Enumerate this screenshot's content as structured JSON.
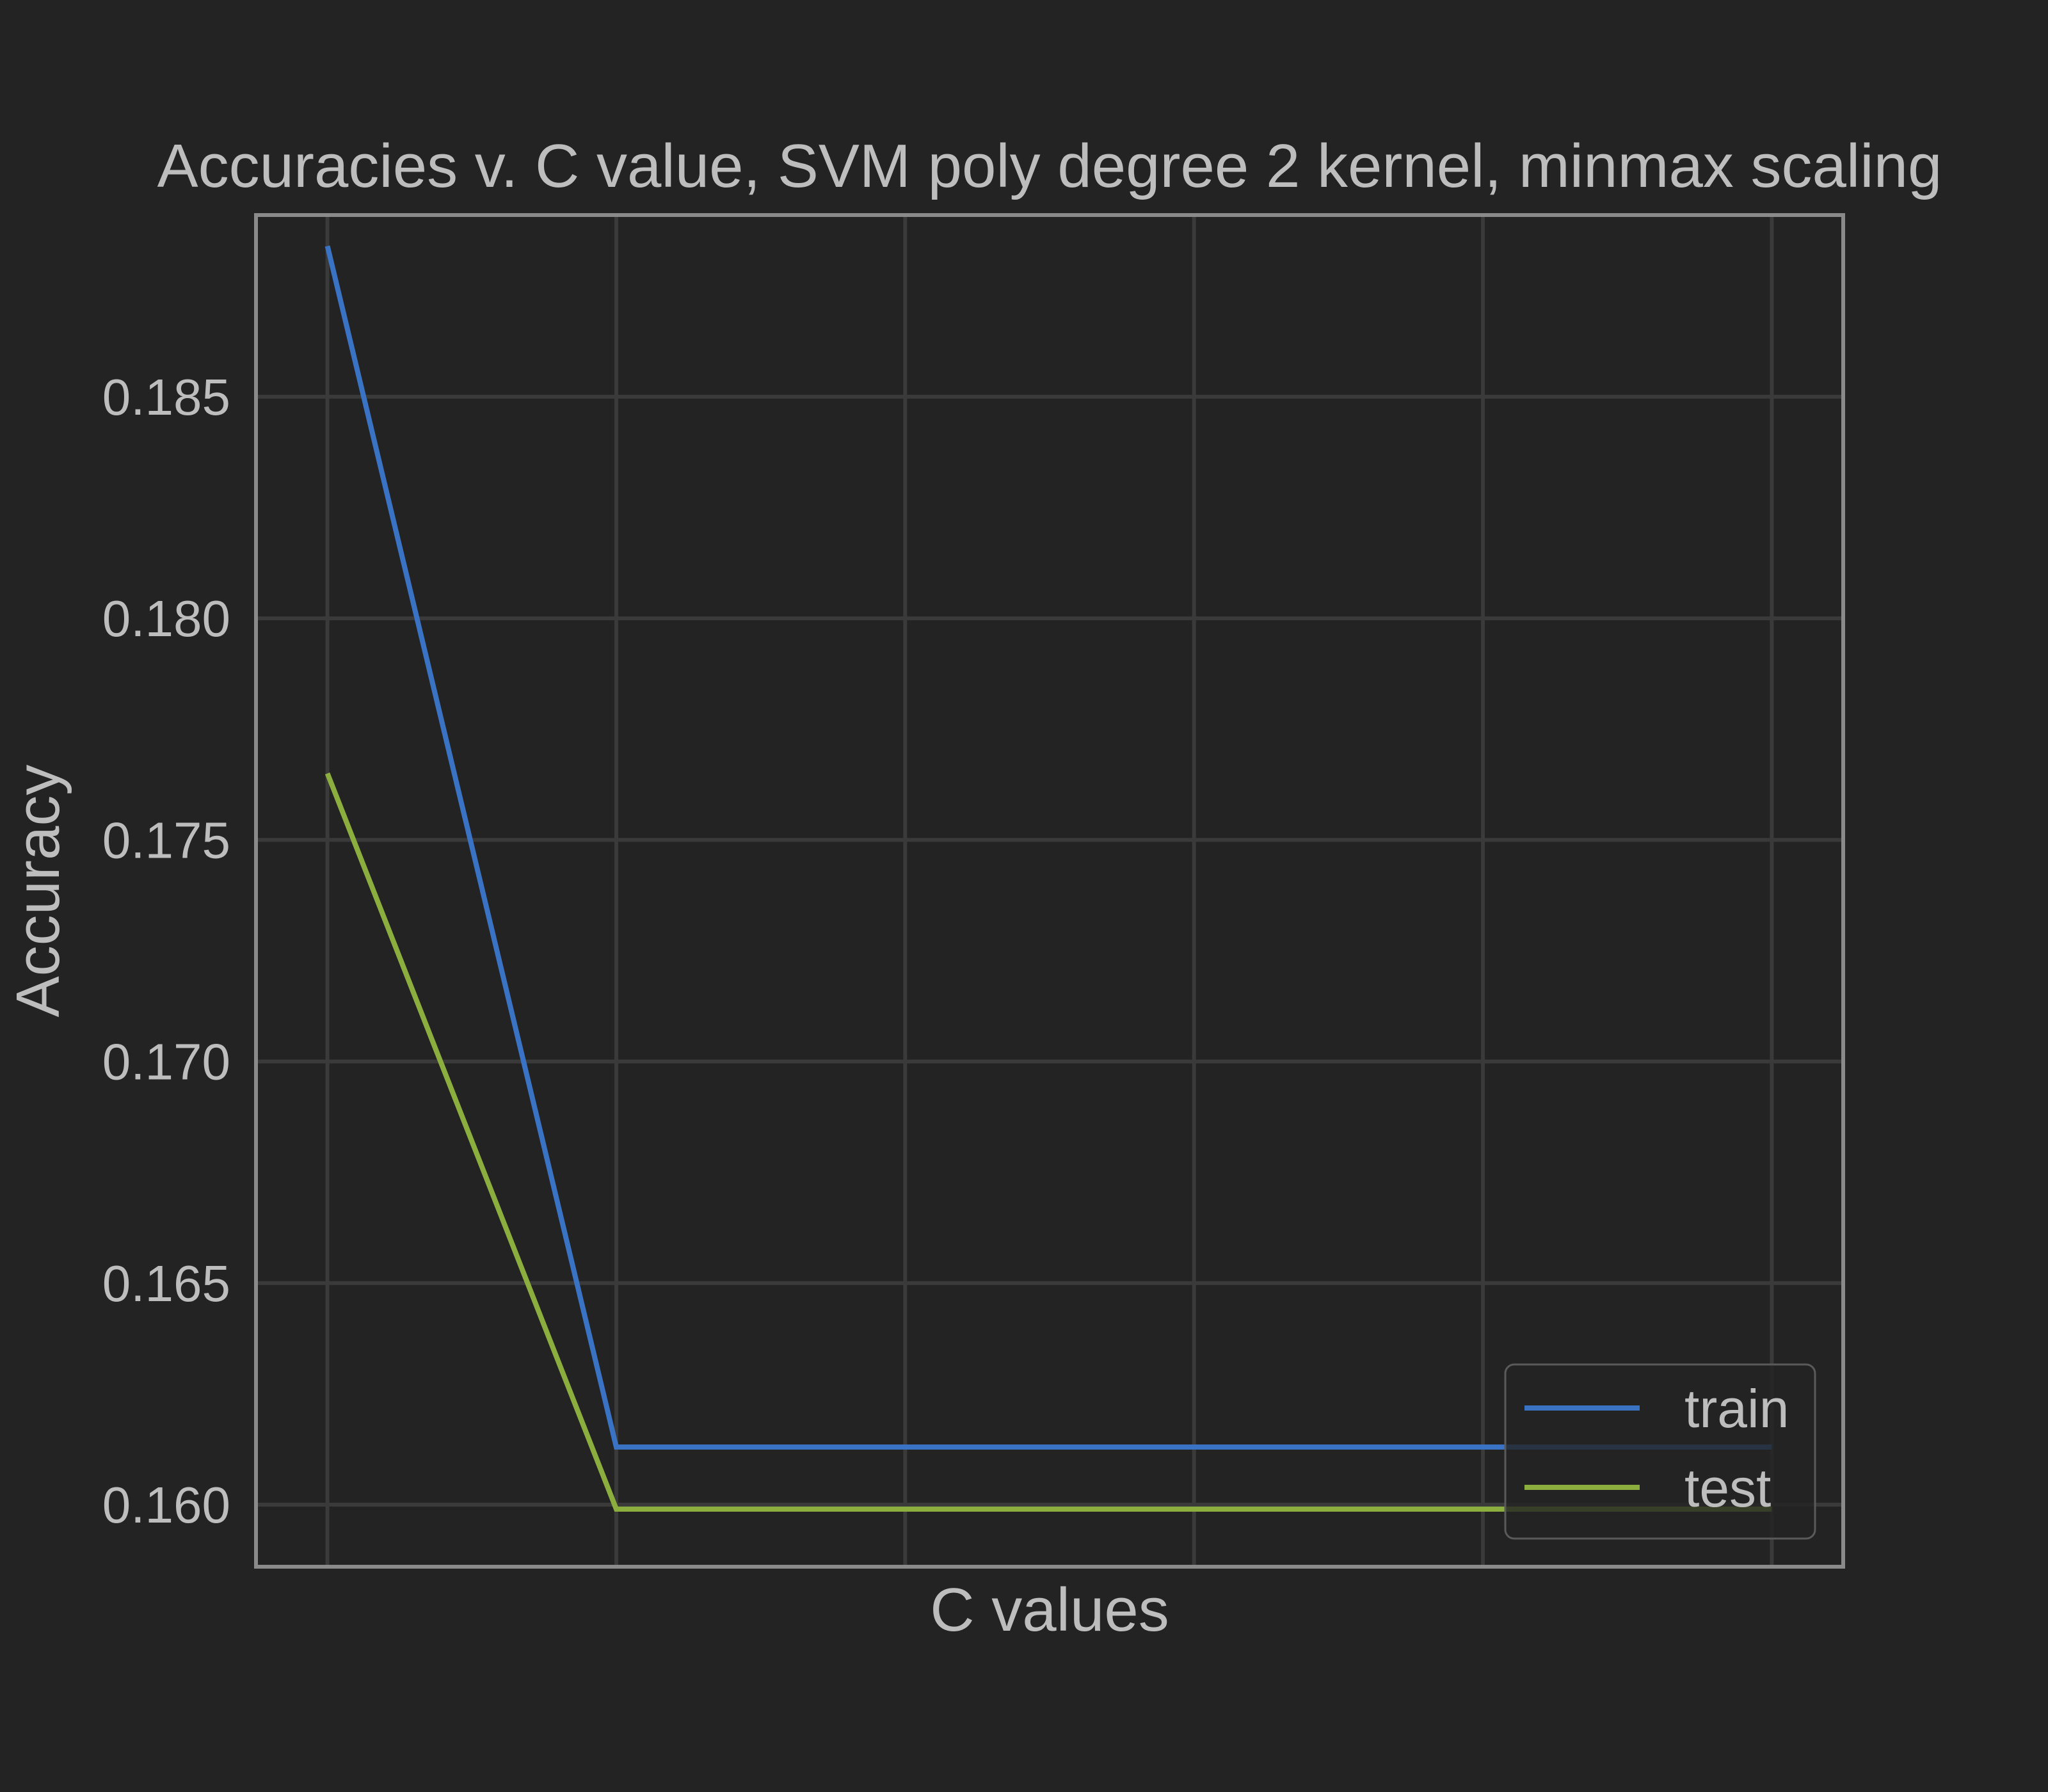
{
  "chart_data": {
    "type": "line",
    "title": "Accuracies v. C value, SVM poly degree 2 kernel,  minmax scaling",
    "xlabel": "C values",
    "ylabel": "Accuracy",
    "x": [
      0,
      1,
      2,
      3,
      4,
      5
    ],
    "ylim": [
      0.1586,
      0.1891
    ],
    "yticks": [
      0.16,
      0.165,
      0.17,
      0.175,
      0.18,
      0.185
    ],
    "ytick_labels": [
      "0.160",
      "0.165",
      "0.170",
      "0.175",
      "0.180",
      "0.185"
    ],
    "grid": true,
    "legend_position": "lower-right",
    "series": [
      {
        "name": "train",
        "color": "#3b73c4",
        "values": [
          0.1884,
          0.1613,
          0.1613,
          0.1613,
          0.1613,
          0.1613
        ]
      },
      {
        "name": "test",
        "color": "#8cae3e",
        "values": [
          0.1765,
          0.1599,
          0.1599,
          0.1599,
          0.1599,
          0.1599
        ]
      }
    ]
  }
}
